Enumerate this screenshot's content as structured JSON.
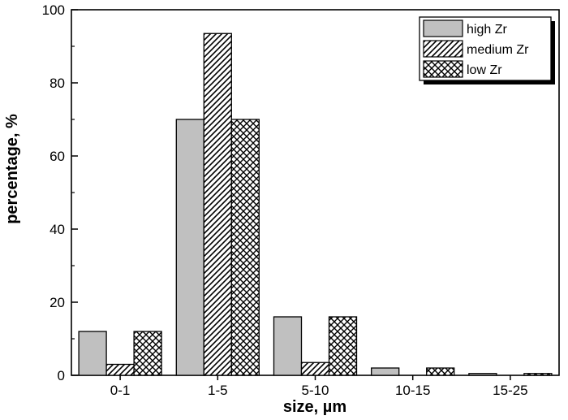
{
  "chart_data": {
    "type": "bar",
    "xlabel": "size, µm",
    "ylabel": "percentage, %",
    "categories": [
      "0-1",
      "1-5",
      "5-10",
      "10-15",
      "15-25"
    ],
    "ylim": [
      0,
      100
    ],
    "yticks": [
      0,
      20,
      40,
      60,
      80,
      100
    ],
    "series": [
      {
        "name": "high Zr",
        "values": [
          12,
          70,
          16,
          2,
          0.5
        ],
        "fill": "#c0c0c0",
        "pattern": "solid"
      },
      {
        "name": "medium Zr",
        "values": [
          3,
          93.5,
          3.5,
          0,
          0
        ],
        "fill": "#ffffff",
        "pattern": "diagonal-hatch"
      },
      {
        "name": "low Zr",
        "values": [
          12,
          70,
          16,
          2,
          0.5
        ],
        "fill": "#ffffff",
        "pattern": "cross-hatch"
      }
    ],
    "legend_position": "top-right",
    "grid": false
  }
}
